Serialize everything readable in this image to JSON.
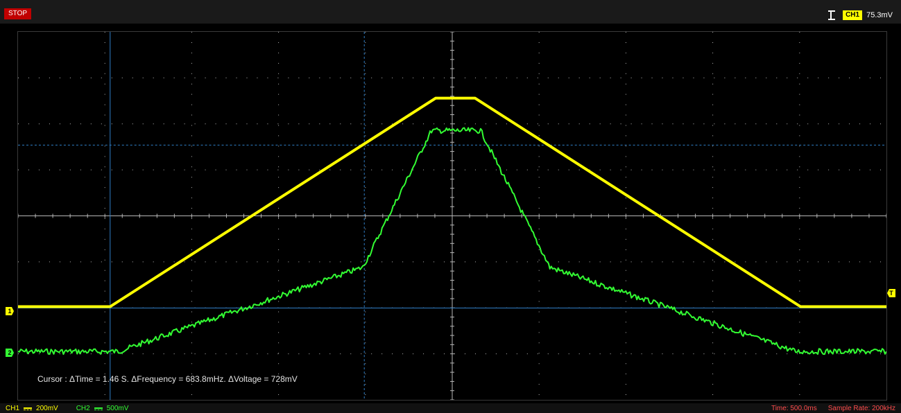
{
  "status": {
    "run_state": "STOP"
  },
  "trigger": {
    "channel": "CH1",
    "level": "75.3mV"
  },
  "channels": [
    {
      "label": "CH1",
      "scale": "200mV",
      "color": "#ffff00",
      "marker": "1"
    },
    {
      "label": "CH2",
      "scale": "500mV",
      "color": "#33ff33",
      "marker": "2"
    }
  ],
  "cursor_readout": "Cursor : ΔTime = 1.46 S. ΔFrequency = 683.8mHz. ΔVoltage = 728mV",
  "timebase": "Time: 500.0ms",
  "sample_rate": "Sample Rate: 200kHz",
  "trigger_marker": "T",
  "colors": {
    "grid": "#b8b8b8",
    "cursor": "#2f7fc8",
    "ch1": "#ffff00",
    "ch2": "#33ff33"
  },
  "icons": {
    "trigger_edge": "rising-edge-icon",
    "coupling": "dc-coupling-icon"
  }
}
